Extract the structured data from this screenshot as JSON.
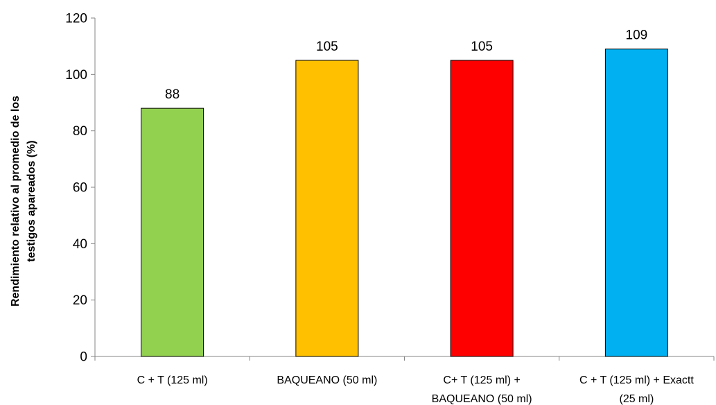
{
  "chart_data": {
    "type": "bar",
    "categories": [
      [
        "C + T (125 ml)"
      ],
      [
        "BAQUEANO (50 ml)"
      ],
      [
        "C+ T (125 ml) +",
        "BAQUEANO (50 ml)"
      ],
      [
        "C + T (125 ml) + Exactt",
        "(25 ml)"
      ]
    ],
    "values": [
      88,
      105,
      105,
      109
    ],
    "data_labels": [
      "88",
      "105",
      "105",
      "109"
    ],
    "colors": [
      "#92d050",
      "#ffc000",
      "#ff0000",
      "#00b0f0"
    ],
    "title": "",
    "xlabel": "",
    "ylabel": [
      "Rendimiento relativo al promedio de los",
      "testigos apareados (%)"
    ],
    "ylim": [
      0,
      120
    ],
    "yticks": [
      0,
      20,
      40,
      60,
      80,
      100,
      120
    ],
    "grid": false,
    "legend": "none"
  }
}
